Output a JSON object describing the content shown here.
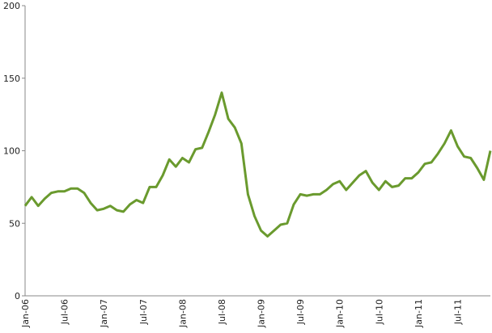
{
  "chart_data": {
    "type": "line",
    "categories": [
      "Jan-06",
      null,
      null,
      null,
      null,
      null,
      "Jul-06",
      null,
      null,
      null,
      null,
      null,
      "Jan-07",
      null,
      null,
      null,
      null,
      null,
      "Jul-07",
      null,
      null,
      null,
      null,
      null,
      "Jan-08",
      null,
      null,
      null,
      null,
      null,
      "Jul-08",
      null,
      null,
      null,
      null,
      null,
      "Jan-09",
      null,
      null,
      null,
      null,
      null,
      "Jul-09",
      null,
      null,
      null,
      null,
      null,
      "Jan-10",
      null,
      null,
      null,
      null,
      null,
      "Jul-10",
      null,
      null,
      null,
      null,
      null,
      "Jan-11",
      null,
      null,
      null,
      null,
      null,
      "Jul-11",
      null,
      null,
      null,
      null,
      null
    ],
    "series": [
      {
        "color": "#6a9a2e",
        "values": [
          62,
          68,
          62,
          67,
          71,
          72,
          72,
          74,
          74,
          71,
          64,
          59,
          60,
          62,
          59,
          58,
          63,
          66,
          64,
          75,
          75,
          83,
          94,
          89,
          95,
          92,
          101,
          102,
          113,
          125,
          140,
          122,
          116,
          105,
          70,
          55,
          45,
          41,
          45,
          49,
          50,
          63,
          70,
          69,
          70,
          70,
          73,
          77,
          79,
          73,
          78,
          83,
          86,
          78,
          73,
          79,
          75,
          76,
          81,
          81,
          85,
          91,
          92,
          98,
          105,
          114,
          103,
          96,
          95,
          88,
          80,
          100
        ]
      }
    ],
    "ylim": [
      0,
      200
    ],
    "yticks": [
      0,
      50,
      100,
      150,
      200
    ]
  }
}
